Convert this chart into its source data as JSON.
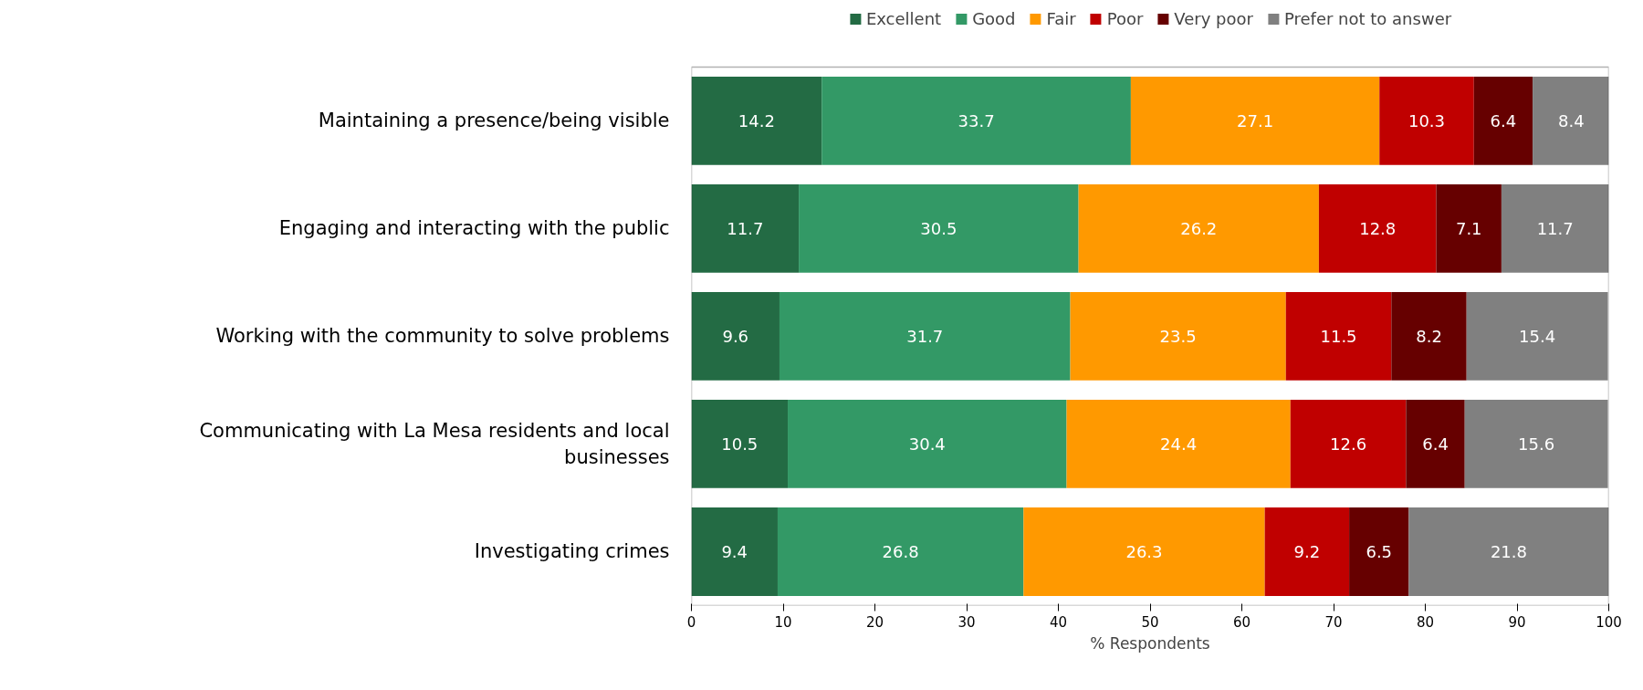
{
  "chart_data": {
    "type": "bar",
    "orientation": "horizontal",
    "stacked": true,
    "xlabel": "% Respondents",
    "categories": [
      "Maintaining a presence/being visible",
      "Engaging and interacting with the public",
      "Working with the community to solve problems",
      "Communicating with La Mesa residents and local businesses",
      "Investigating crimes"
    ],
    "series": [
      {
        "name": "Excellent",
        "color": "#236b44",
        "values": [
          14.2,
          11.7,
          9.6,
          10.5,
          9.4
        ]
      },
      {
        "name": "Good",
        "color": "#339966",
        "values": [
          33.7,
          30.5,
          31.7,
          30.4,
          26.8
        ]
      },
      {
        "name": "Fair",
        "color": "#ff9900",
        "values": [
          27.1,
          26.2,
          23.5,
          24.4,
          26.3
        ]
      },
      {
        "name": "Poor",
        "color": "#c00000",
        "values": [
          10.3,
          12.8,
          11.5,
          12.6,
          9.2
        ]
      },
      {
        "name": "Very poor",
        "color": "#660000",
        "values": [
          6.4,
          7.1,
          8.2,
          6.4,
          6.5
        ]
      },
      {
        "name": "Prefer not to answer",
        "color": "#808080",
        "values": [
          8.4,
          11.7,
          15.4,
          15.6,
          21.8
        ]
      }
    ],
    "xlim": [
      0,
      100
    ],
    "xticks": [
      0,
      10,
      20,
      30,
      40,
      50,
      60,
      70,
      80,
      90,
      100
    ],
    "data_labels": true,
    "legend": "top",
    "grid": false
  }
}
